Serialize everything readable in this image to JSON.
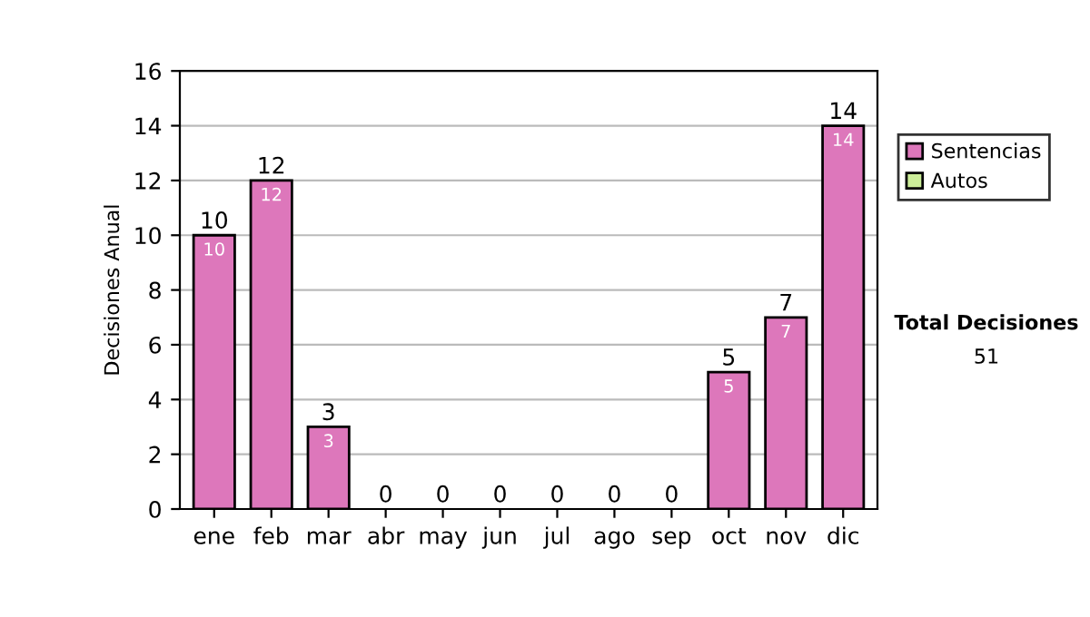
{
  "chart_data": {
    "type": "bar",
    "stacked": true,
    "ylabel": "Decisiones Anual",
    "categories": [
      "ene",
      "feb",
      "mar",
      "abr",
      "may",
      "jun",
      "jul",
      "ago",
      "sep",
      "oct",
      "nov",
      "dic"
    ],
    "series": [
      {
        "name": "Sentencias",
        "color": "#dd77bb",
        "values": [
          10,
          12,
          3,
          0,
          0,
          0,
          0,
          0,
          0,
          5,
          7,
          14
        ],
        "value_labels": [
          "10",
          "12",
          "3",
          null,
          null,
          null,
          null,
          null,
          null,
          "5",
          "7",
          "14"
        ]
      },
      {
        "name": "Autos",
        "color": "#ccee99",
        "values": [
          0,
          0,
          0,
          0,
          0,
          0,
          0,
          0,
          0,
          0,
          0,
          0
        ]
      }
    ],
    "totals": [
      "10",
      "12",
      "3",
      "0",
      "0",
      "0",
      "0",
      "0",
      "0",
      "5",
      "7",
      "14"
    ],
    "ylim": [
      0,
      16
    ],
    "yticks": [
      0,
      2,
      4,
      6,
      8,
      10,
      12,
      14,
      16
    ],
    "grid": "y",
    "legend": "right",
    "annotations": [
      "Total Decisiones",
      "51"
    ]
  }
}
